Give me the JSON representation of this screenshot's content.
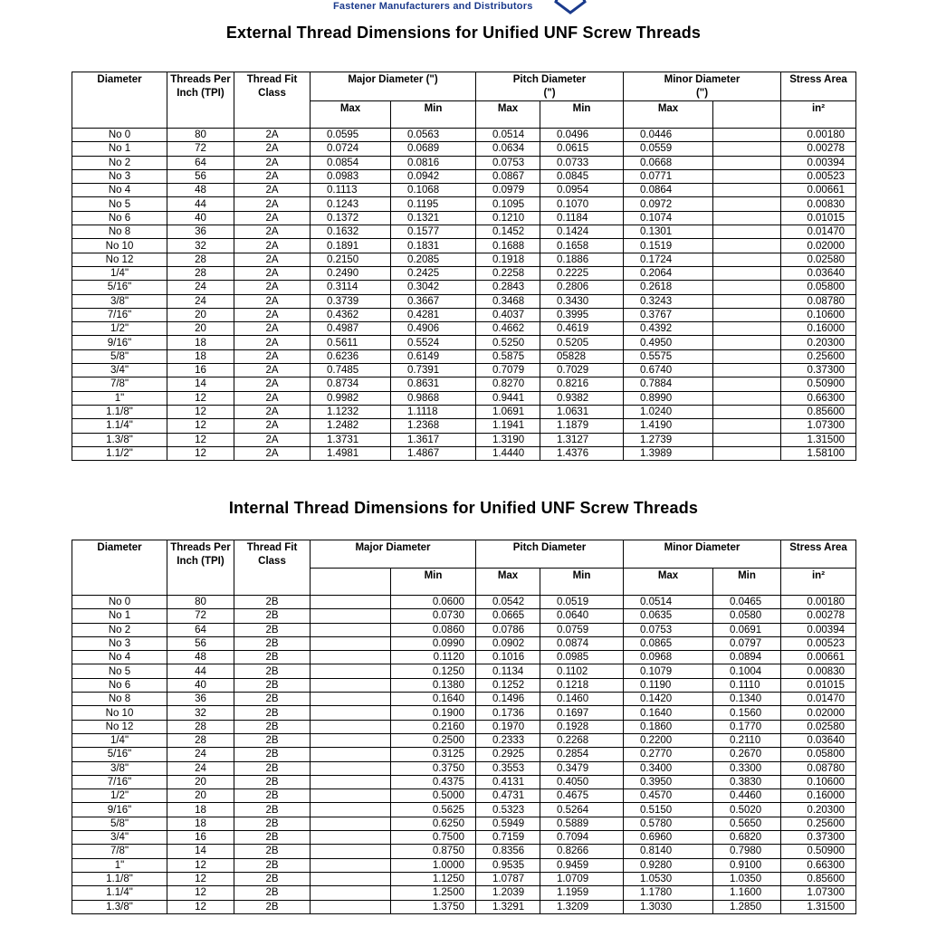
{
  "header": {
    "brand_tagline": "Fastener Manufacturers and Distributors"
  },
  "external": {
    "title": "External Thread Dimensions for Unified UNF Screw Threads",
    "headers": {
      "diameter": "Diameter",
      "tpi": "Threads Per Inch (TPI)",
      "fit": "Thread Fit Class",
      "major": "Major Diameter (\")",
      "pitch": "Pitch Diameter (\")",
      "minor": "Minor Diameter (\")",
      "stress": "Stress Area",
      "max": "Max",
      "min": "Min",
      "unit": "in²"
    },
    "rows": [
      [
        "No 0",
        "80",
        "2A",
        "0.0595",
        "0.0563",
        "0.0514",
        "0.0496",
        "0.0446",
        "",
        "0.00180"
      ],
      [
        "No 1",
        "72",
        "2A",
        "0.0724",
        "0.0689",
        "0.0634",
        "0.0615",
        "0.0559",
        "",
        "0.00278"
      ],
      [
        "No 2",
        "64",
        "2A",
        "0.0854",
        "0.0816",
        "0.0753",
        "0.0733",
        "0.0668",
        "",
        "0.00394"
      ],
      [
        "No 3",
        "56",
        "2A",
        "0.0983",
        "0.0942",
        "0.0867",
        "0.0845",
        "0.0771",
        "",
        "0.00523"
      ],
      [
        "No 4",
        "48",
        "2A",
        "0.1113",
        "0.1068",
        "0.0979",
        "0.0954",
        "0.0864",
        "",
        "0.00661"
      ],
      [
        "No 5",
        "44",
        "2A",
        "0.1243",
        "0.1195",
        "0.1095",
        "0.1070",
        "0.0972",
        "",
        "0.00830"
      ],
      [
        "No 6",
        "40",
        "2A",
        "0.1372",
        "0.1321",
        "0.1210",
        "0.1184",
        "0.1074",
        "",
        "0.01015"
      ],
      [
        "No 8",
        "36",
        "2A",
        "0.1632",
        "0.1577",
        "0.1452",
        "0.1424",
        "0.1301",
        "",
        "0.01470"
      ],
      [
        "No 10",
        "32",
        "2A",
        "0.1891",
        "0.1831",
        "0.1688",
        "0.1658",
        "0.1519",
        "",
        "0.02000"
      ],
      [
        "No 12",
        "28",
        "2A",
        "0.2150",
        "0.2085",
        "0.1918",
        "0.1886",
        "0.1724",
        "",
        "0.02580"
      ],
      [
        "1/4\"",
        "28",
        "2A",
        "0.2490",
        "0.2425",
        "0.2258",
        "0.2225",
        "0.2064",
        "",
        "0.03640"
      ],
      [
        "5/16\"",
        "24",
        "2A",
        "0.3114",
        "0.3042",
        "0.2843",
        "0.2806",
        "0.2618",
        "",
        "0.05800"
      ],
      [
        "3/8\"",
        "24",
        "2A",
        "0.3739",
        "0.3667",
        "0.3468",
        "0.3430",
        "0.3243",
        "",
        "0.08780"
      ],
      [
        "7/16\"",
        "20",
        "2A",
        "0.4362",
        "0.4281",
        "0.4037",
        "0.3995",
        "0.3767",
        "",
        "0.10600"
      ],
      [
        "1/2\"",
        "20",
        "2A",
        "0.4987",
        "0.4906",
        "0.4662",
        "0.4619",
        "0.4392",
        "",
        "0.16000"
      ],
      [
        "9/16\"",
        "18",
        "2A",
        "0.5611",
        "0.5524",
        "0.5250",
        "0.5205",
        "0.4950",
        "",
        "0.20300"
      ],
      [
        "5/8\"",
        "18",
        "2A",
        "0.6236",
        "0.6149",
        "0.5875",
        "05828",
        "0.5575",
        "",
        "0.25600"
      ],
      [
        "3/4\"",
        "16",
        "2A",
        "0.7485",
        "0.7391",
        "0.7079",
        "0.7029",
        "0.6740",
        "",
        "0.37300"
      ],
      [
        "7/8\"",
        "14",
        "2A",
        "0.8734",
        "0.8631",
        "0.8270",
        "0.8216",
        "0.7884",
        "",
        "0.50900"
      ],
      [
        "1\"",
        "12",
        "2A",
        "0.9982",
        "0.9868",
        "0.9441",
        "0.9382",
        "0.8990",
        "",
        "0.66300"
      ],
      [
        "1.1/8\"",
        "12",
        "2A",
        "1.1232",
        "1.1118",
        "1.0691",
        "1.0631",
        "1.0240",
        "",
        "0.85600"
      ],
      [
        "1.1/4\"",
        "12",
        "2A",
        "1.2482",
        "1.2368",
        "1.1941",
        "1.1879",
        "1.4190",
        "",
        "1.07300"
      ],
      [
        "1.3/8\"",
        "12",
        "2A",
        "1.3731",
        "1.3617",
        "1.3190",
        "1.3127",
        "1.2739",
        "",
        "1.31500"
      ],
      [
        "1.1/2\"",
        "12",
        "2A",
        "1.4981",
        "1.4867",
        "1.4440",
        "1.4376",
        "1.3989",
        "",
        "1.58100"
      ]
    ]
  },
  "internal": {
    "title": "Internal Thread Dimensions for Unified UNF Screw Threads",
    "headers": {
      "diameter": "Diameter",
      "tpi": "Threads Per Inch (TPI)",
      "fit": "Thread Fit Class",
      "major": "Major Diameter",
      "pitch": "Pitch Diameter",
      "minor": "Minor Diameter",
      "stress": "Stress Area",
      "max": "Max",
      "min": "Min",
      "unit": "in²"
    },
    "rows": [
      [
        "No 0",
        "80",
        "2B",
        "",
        "0.0600",
        "0.0542",
        "0.0519",
        "0.0514",
        "0.0465",
        "0.00180"
      ],
      [
        "No 1",
        "72",
        "2B",
        "",
        "0.0730",
        "0.0665",
        "0.0640",
        "0.0635",
        "0.0580",
        "0.00278"
      ],
      [
        "No 2",
        "64",
        "2B",
        "",
        "0.0860",
        "0.0786",
        "0.0759",
        "0.0753",
        "0.0691",
        "0.00394"
      ],
      [
        "No 3",
        "56",
        "2B",
        "",
        "0.0990",
        "0.0902",
        "0.0874",
        "0.0865",
        "0.0797",
        "0.00523"
      ],
      [
        "No 4",
        "48",
        "2B",
        "",
        "0.1120",
        "0.1016",
        "0.0985",
        "0.0968",
        "0.0894",
        "0.00661"
      ],
      [
        "No 5",
        "44",
        "2B",
        "",
        "0.1250",
        "0.1134",
        "0.1102",
        "0.1079",
        "0.1004",
        "0.00830"
      ],
      [
        "No 6",
        "40",
        "2B",
        "",
        "0.1380",
        "0.1252",
        "0.1218",
        "0.1190",
        "0.1110",
        "0.01015"
      ],
      [
        "No 8",
        "36",
        "2B",
        "",
        "0.1640",
        "0.1496",
        "0.1460",
        "0.1420",
        "0.1340",
        "0.01470"
      ],
      [
        "No 10",
        "32",
        "2B",
        "",
        "0.1900",
        "0.1736",
        "0.1697",
        "0.1640",
        "0.1560",
        "0.02000"
      ],
      [
        "No 12",
        "28",
        "2B",
        "",
        "0.2160",
        "0.1970",
        "0.1928",
        "0.1860",
        "0.1770",
        "0.02580"
      ],
      [
        "1/4\"",
        "28",
        "2B",
        "",
        "0.2500",
        "0.2333",
        "0.2268",
        "0.2200",
        "0.2110",
        "0.03640"
      ],
      [
        "5/16\"",
        "24",
        "2B",
        "",
        "0.3125",
        "0.2925",
        "0.2854",
        "0.2770",
        "0.2670",
        "0.05800"
      ],
      [
        "3/8\"",
        "24",
        "2B",
        "",
        "0.3750",
        "0.3553",
        "0.3479",
        "0.3400",
        "0.3300",
        "0.08780"
      ],
      [
        "7/16\"",
        "20",
        "2B",
        "",
        "0.4375",
        "0.4131",
        "0.4050",
        "0.3950",
        "0.3830",
        "0.10600"
      ],
      [
        "1/2\"",
        "20",
        "2B",
        "",
        "0.5000",
        "0.4731",
        "0.4675",
        "0.4570",
        "0.4460",
        "0.16000"
      ],
      [
        "9/16\"",
        "18",
        "2B",
        "",
        "0.5625",
        "0.5323",
        "0.5264",
        "0.5150",
        "0.5020",
        "0.20300"
      ],
      [
        "5/8\"",
        "18",
        "2B",
        "",
        "0.6250",
        "0.5949",
        "0.5889",
        "0.5780",
        "0.5650",
        "0.25600"
      ],
      [
        "3/4\"",
        "16",
        "2B",
        "",
        "0.7500",
        "0.7159",
        "0.7094",
        "0.6960",
        "0.6820",
        "0.37300"
      ],
      [
        "7/8\"",
        "14",
        "2B",
        "",
        "0.8750",
        "0.8356",
        "0.8266",
        "0.8140",
        "0.7980",
        "0.50900"
      ],
      [
        "1\"",
        "12",
        "2B",
        "",
        "1.0000",
        "0.9535",
        "0.9459",
        "0.9280",
        "0.9100",
        "0.66300"
      ],
      [
        "1.1/8\"",
        "12",
        "2B",
        "",
        "1.1250",
        "1.0787",
        "1.0709",
        "1.0530",
        "1.0350",
        "0.85600"
      ],
      [
        "1.1/4\"",
        "12",
        "2B",
        "",
        "1.2500",
        "1.2039",
        "1.1959",
        "1.1780",
        "1.1600",
        "1.07300"
      ],
      [
        "1.3/8\"",
        "12",
        "2B",
        "",
        "1.3750",
        "1.3291",
        "1.3209",
        "1.3030",
        "1.2850",
        "1.31500"
      ]
    ]
  }
}
